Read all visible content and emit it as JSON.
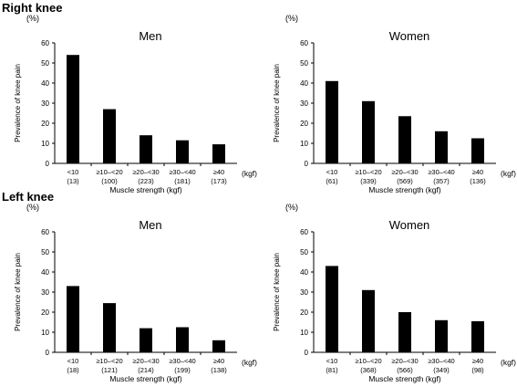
{
  "sections": [
    {
      "title": "Right knee"
    },
    {
      "title": "Left knee"
    }
  ],
  "chart_data": [
    {
      "type": "bar",
      "title": "Men",
      "ylabel": "Prevalence of knee pain",
      "y_unit": "(%)",
      "xlabel": "Muscle strength (kgf)",
      "x_unit": "(kgf)",
      "ylim": [
        0,
        60
      ],
      "yticks": [
        0,
        10,
        20,
        30,
        40,
        50,
        60
      ],
      "categories": [
        "<10",
        "≥10–<20",
        "≥20–<30",
        "≥30–<40",
        "≥40"
      ],
      "counts": [
        "(13)",
        "(100)",
        "(223)",
        "(181)",
        "(173)"
      ],
      "values": [
        54,
        27,
        14,
        11.5,
        9.5
      ],
      "grid": false,
      "bar_color": "#000000"
    },
    {
      "type": "bar",
      "title": "Women",
      "ylabel": "Prevalence of knee pain",
      "y_unit": "(%)",
      "xlabel": "Muscle strength (kgf)",
      "x_unit": "(kgf)",
      "ylim": [
        0,
        60
      ],
      "yticks": [
        0,
        10,
        20,
        30,
        40,
        50,
        60
      ],
      "categories": [
        "<10",
        "≥10–<20",
        "≥20–<30",
        "≥30–<40",
        "≥40"
      ],
      "counts": [
        "(61)",
        "(339)",
        "(569)",
        "(357)",
        "(136)"
      ],
      "values": [
        41,
        31,
        23.5,
        16,
        12.5
      ],
      "grid": false,
      "bar_color": "#000000"
    },
    {
      "type": "bar",
      "title": "Men",
      "ylabel": "Prevalence of knee pain",
      "y_unit": "(%)",
      "xlabel": "Muscle strength (kgf)",
      "x_unit": "(kgf)",
      "ylim": [
        0,
        60
      ],
      "yticks": [
        0,
        10,
        20,
        30,
        40,
        50,
        60
      ],
      "categories": [
        "<10",
        "≥10–<20",
        "≥20–<30",
        "≥30–<40",
        "≥40"
      ],
      "counts": [
        "(18)",
        "(121)",
        "(214)",
        "(199)",
        "(138)"
      ],
      "values": [
        33,
        24.5,
        12,
        12.5,
        6
      ],
      "grid": false,
      "bar_color": "#000000"
    },
    {
      "type": "bar",
      "title": "Women",
      "ylabel": "Prevalence of knee pain",
      "y_unit": "(%)",
      "xlabel": "Muscle strength (kgf)",
      "x_unit": "(kgf)",
      "ylim": [
        0,
        60
      ],
      "yticks": [
        0,
        10,
        20,
        30,
        40,
        50,
        60
      ],
      "categories": [
        "<10",
        "≥10–<20",
        "≥20–<30",
        "≥30–<40",
        "≥40"
      ],
      "counts": [
        "(81)",
        "(368)",
        "(566)",
        "(349)",
        "(98)"
      ],
      "values": [
        43,
        31,
        20,
        16,
        15.5
      ],
      "grid": false,
      "bar_color": "#000000"
    }
  ]
}
